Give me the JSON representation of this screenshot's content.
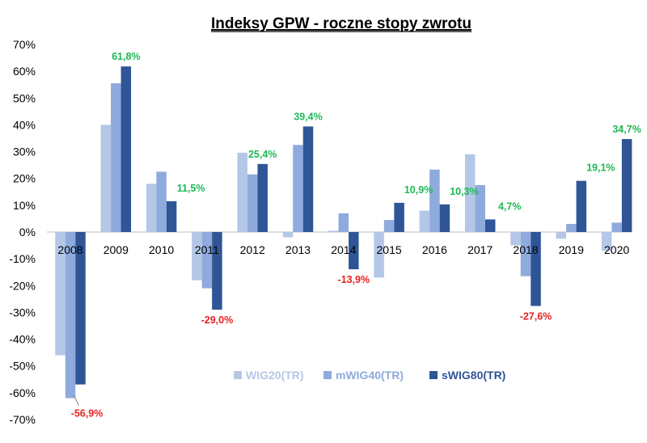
{
  "colors": {
    "positive_label": "#1db954",
    "negative_label": "#e8201f",
    "zero_line": "#bfbfbf"
  },
  "chart_data": {
    "type": "bar",
    "title": "Indeksy GPW - roczne stopy zwrotu",
    "xlabel": "",
    "ylabel": "",
    "ylim": [
      -70,
      70
    ],
    "yticks": [
      70,
      60,
      50,
      40,
      30,
      20,
      10,
      0,
      -10,
      -20,
      -30,
      -40,
      -50,
      -60,
      -70
    ],
    "ytick_labels": [
      "70%",
      "60%",
      "50%",
      "40%",
      "30%",
      "20%",
      "10%",
      "0%",
      "-10%",
      "-20%",
      "-30%",
      "-40%",
      "-50%",
      "-60%",
      "-70%"
    ],
    "grid": false,
    "legend_position": "bottom-right",
    "categories": [
      "2008",
      "2009",
      "2010",
      "2011",
      "2012",
      "2013",
      "2014",
      "2015",
      "2016",
      "2017",
      "2018",
      "2019",
      "2020"
    ],
    "series": [
      {
        "name": "WIG20(TR)",
        "color": "#b4c7e7",
        "values": [
          -46,
          40,
          18,
          -18,
          29.6,
          -2,
          0.5,
          -17,
          8,
          29,
          -5,
          -2.5,
          -7
        ]
      },
      {
        "name": "mWIG40(TR)",
        "color": "#8faadc",
        "values": [
          -62,
          55.5,
          22.5,
          -21,
          21.5,
          32.5,
          7,
          4.5,
          23.3,
          17.5,
          -16.5,
          3,
          3.5
        ]
      },
      {
        "name": "sWIG80(TR)",
        "color": "#2f5597",
        "values": [
          -56.9,
          61.8,
          11.5,
          -29,
          25.4,
          39.4,
          -13.9,
          10.9,
          10.3,
          4.7,
          -27.6,
          19.1,
          34.7
        ]
      }
    ],
    "data_labels": [
      "-56,9%",
      "61,8%",
      "11,5%",
      "-29,0%",
      "25,4%",
      "39,4%",
      "-13,9%",
      "10,9%",
      "10,3%",
      "4,7%",
      "-27,6%",
      "19,1%",
      "34,7%"
    ]
  }
}
